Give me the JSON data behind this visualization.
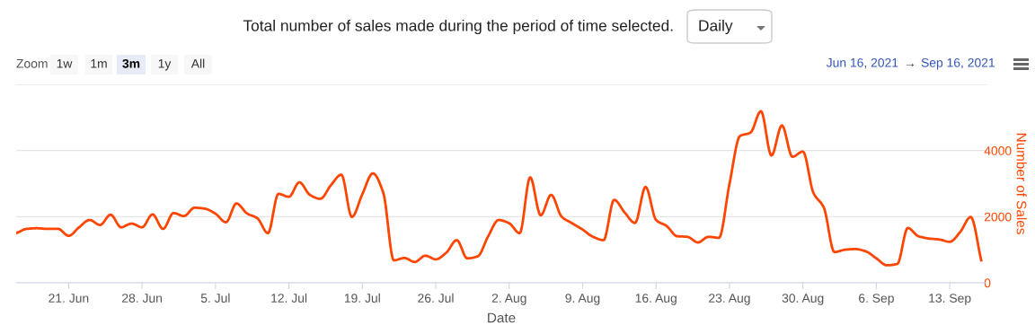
{
  "chart_data": {
    "type": "line",
    "title": "Total number of sales made during the period of time selected.",
    "xlabel": "Date",
    "ylabel": "Number of Sales",
    "annotations": [
      "Daily",
      "Zoom",
      "1w",
      "1m",
      "3m",
      "1y",
      "All",
      "Jun 16, 2021",
      "→",
      "Sep 16, 2021"
    ],
    "x": [
      "2021-06-16",
      "2021-06-17",
      "2021-06-18",
      "2021-06-19",
      "2021-06-20",
      "2021-06-21",
      "2021-06-22",
      "2021-06-23",
      "2021-06-24",
      "2021-06-25",
      "2021-06-26",
      "2021-06-27",
      "2021-06-28",
      "2021-06-29",
      "2021-06-30",
      "2021-07-01",
      "2021-07-02",
      "2021-07-03",
      "2021-07-04",
      "2021-07-05",
      "2021-07-06",
      "2021-07-07",
      "2021-07-08",
      "2021-07-09",
      "2021-07-10",
      "2021-07-11",
      "2021-07-12",
      "2021-07-13",
      "2021-07-14",
      "2021-07-15",
      "2021-07-16",
      "2021-07-17",
      "2021-07-18",
      "2021-07-19",
      "2021-07-20",
      "2021-07-21",
      "2021-07-22",
      "2021-07-23",
      "2021-07-24",
      "2021-07-25",
      "2021-07-26",
      "2021-07-27",
      "2021-07-28",
      "2021-07-29",
      "2021-07-30",
      "2021-07-31",
      "2021-08-01",
      "2021-08-02",
      "2021-08-03",
      "2021-08-04",
      "2021-08-05",
      "2021-08-06",
      "2021-08-07",
      "2021-08-08",
      "2021-08-09",
      "2021-08-10",
      "2021-08-11",
      "2021-08-12",
      "2021-08-13",
      "2021-08-14",
      "2021-08-15",
      "2021-08-16",
      "2021-08-17",
      "2021-08-18",
      "2021-08-19",
      "2021-08-20",
      "2021-08-21",
      "2021-08-22",
      "2021-08-23",
      "2021-08-24",
      "2021-08-25",
      "2021-08-26",
      "2021-08-27",
      "2021-08-28",
      "2021-08-29",
      "2021-08-30",
      "2021-08-31",
      "2021-09-01",
      "2021-09-02",
      "2021-09-03",
      "2021-09-04",
      "2021-09-05",
      "2021-09-06",
      "2021-09-07",
      "2021-09-08",
      "2021-09-09",
      "2021-09-10",
      "2021-09-11",
      "2021-09-12",
      "2021-09-13",
      "2021-09-14",
      "2021-09-15",
      "2021-09-16"
    ],
    "series": [
      {
        "color": "#ff4500",
        "values": [
          1500,
          1630,
          1650,
          1630,
          1630,
          1420,
          1680,
          1900,
          1750,
          2060,
          1680,
          1790,
          1680,
          2070,
          1630,
          2110,
          2020,
          2270,
          2240,
          2090,
          1830,
          2400,
          2100,
          1950,
          1500,
          2690,
          2600,
          3040,
          2660,
          2540,
          2950,
          3270,
          1990,
          2680,
          3310,
          2720,
          680,
          750,
          630,
          820,
          710,
          910,
          1290,
          740,
          800,
          1410,
          1900,
          1800,
          1500,
          3190,
          2040,
          2660,
          2000,
          1800,
          1610,
          1390,
          1290,
          2510,
          2130,
          1810,
          2900,
          1900,
          1720,
          1410,
          1390,
          1220,
          1390,
          1360,
          2990,
          4440,
          4540,
          5190,
          3850,
          4760,
          3810,
          3970,
          2720,
          2270,
          930,
          1000,
          1020,
          950,
          740,
          530,
          570,
          1660,
          1410,
          1340,
          1310,
          1240,
          1540,
          1990,
          680
        ]
      }
    ],
    "xlim": [
      "2021-06-16",
      "2021-09-16T12:00"
    ],
    "xticks": [
      {
        "value": "2021-06-21",
        "label": "21. Jun"
      },
      {
        "value": "2021-06-28",
        "label": "28. Jun"
      },
      {
        "value": "2021-07-05",
        "label": "5. Jul"
      },
      {
        "value": "2021-07-12",
        "label": "12. Jul"
      },
      {
        "value": "2021-07-19",
        "label": "19. Jul"
      },
      {
        "value": "2021-07-26",
        "label": "26. Jul"
      },
      {
        "value": "2021-08-02",
        "label": "2. Aug"
      },
      {
        "value": "2021-08-09",
        "label": "9. Aug"
      },
      {
        "value": "2021-08-16",
        "label": "16. Aug"
      },
      {
        "value": "2021-08-23",
        "label": "23. Aug"
      },
      {
        "value": "2021-08-30",
        "label": "30. Aug"
      },
      {
        "value": "2021-09-06",
        "label": "6. Sep"
      },
      {
        "value": "2021-09-13",
        "label": "13. Sep"
      }
    ],
    "ylim": [
      0,
      6000
    ],
    "yticks": [
      0,
      2000,
      4000,
      {
        "value": 6000,
        "label": null
      }
    ],
    "grid": "y",
    "legend": false,
    "marker": "none",
    "line_style": "solid"
  }
}
